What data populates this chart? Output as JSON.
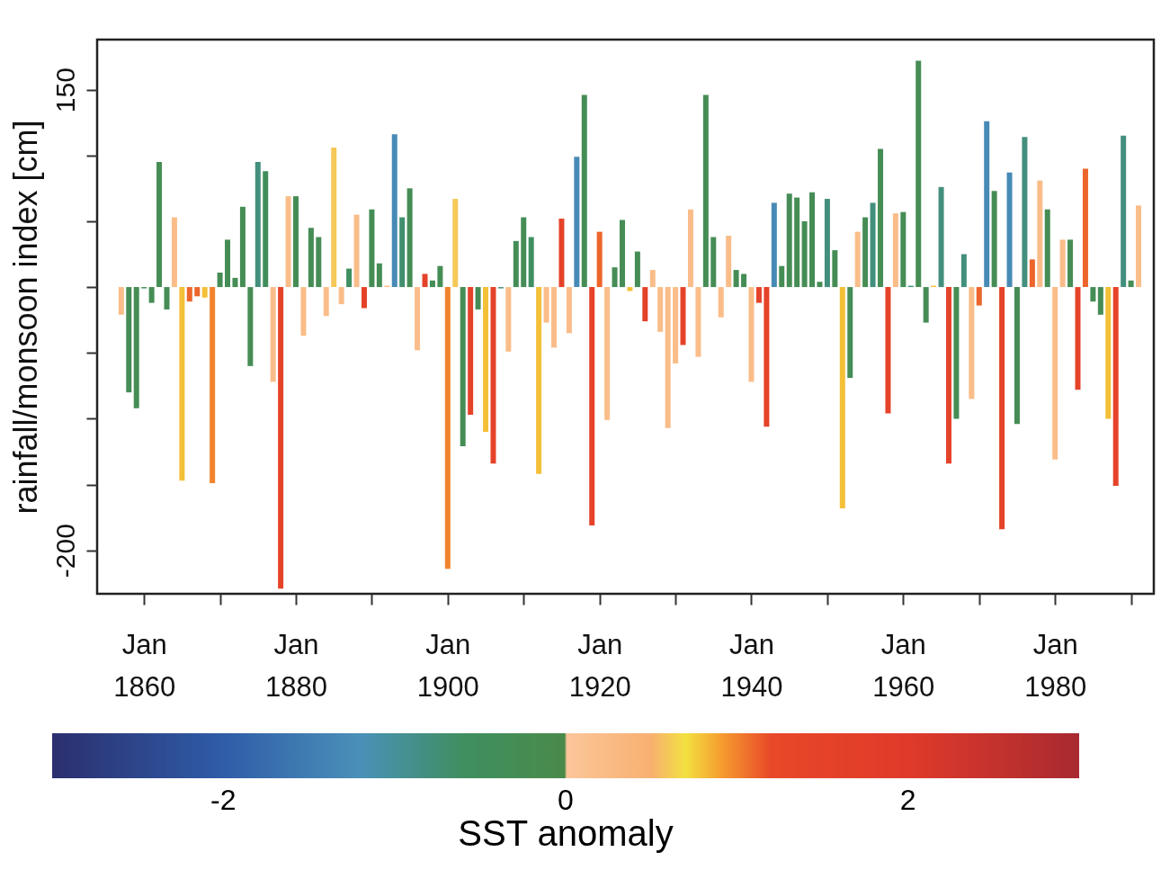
{
  "chart_data": {
    "type": "bar",
    "ylabel": "rainfall/monsoon index [cm]",
    "clabel": "SST anomaly",
    "clim": [
      -3,
      3
    ],
    "cticks": [
      -2,
      0,
      2
    ],
    "xlim": [
      "1854-06",
      "1992-06"
    ],
    "xticks": [
      {
        "value": "1860",
        "label": "Jan 1860"
      },
      {
        "value": "1870",
        "label": null
      },
      {
        "value": "1880",
        "label": "Jan 1880"
      },
      {
        "value": "1890",
        "label": null
      },
      {
        "value": "1900",
        "label": "Jan 1900"
      },
      {
        "value": "1910",
        "label": null
      },
      {
        "value": "1920",
        "label": "Jan 1920"
      },
      {
        "value": "1930",
        "label": null
      },
      {
        "value": "1940",
        "label": "Jan 1940"
      },
      {
        "value": "1950",
        "label": null
      },
      {
        "value": "1960",
        "label": "Jan 1960"
      },
      {
        "value": "1970",
        "label": null
      },
      {
        "value": "1980",
        "label": "Jan 1980"
      },
      {
        "value": "1990",
        "label": null
      }
    ],
    "ylim": [
      -233,
      188
    ],
    "yticks": [
      -200,
      {
        "value": -150,
        "label": null
      },
      {
        "value": -100,
        "label": null
      },
      {
        "value": -50,
        "label": null
      },
      {
        "value": 0,
        "label": null
      },
      {
        "value": 50,
        "label": null
      },
      {
        "value": 100,
        "label": null
      },
      150
    ],
    "x": [
      "1857",
      "1858",
      "1859",
      "1860",
      "1861",
      "1862",
      "1863",
      "1864",
      "1865",
      "1866",
      "1867",
      "1868",
      "1869",
      "1870",
      "1871",
      "1872",
      "1873",
      "1874",
      "1875",
      "1876",
      "1877",
      "1878",
      "1879",
      "1880",
      "1881",
      "1882",
      "1883",
      "1884",
      "1885",
      "1886",
      "1887",
      "1888",
      "1889",
      "1890",
      "1891",
      "1892",
      "1893",
      "1894",
      "1895",
      "1896",
      "1897",
      "1898",
      "1899",
      "1900",
      "1901",
      "1902",
      "1903",
      "1904",
      "1905",
      "1906",
      "1907",
      "1908",
      "1909",
      "1910",
      "1911",
      "1912",
      "1913",
      "1914",
      "1915",
      "1916",
      "1917",
      "1918",
      "1919",
      "1920",
      "1921",
      "1922",
      "1923",
      "1924",
      "1925",
      "1926",
      "1927",
      "1928",
      "1929",
      "1930",
      "1931",
      "1932",
      "1933",
      "1934",
      "1935",
      "1936",
      "1937",
      "1938",
      "1939",
      "1940",
      "1941",
      "1942",
      "1943",
      "1944",
      "1945",
      "1946",
      "1947",
      "1948",
      "1949",
      "1950",
      "1951",
      "1952",
      "1953",
      "1954",
      "1955",
      "1956",
      "1957",
      "1958",
      "1959",
      "1960",
      "1961",
      "1962",
      "1963",
      "1964",
      "1965",
      "1966",
      "1967",
      "1968",
      "1969",
      "1970",
      "1971",
      "1972",
      "1973",
      "1974",
      "1975",
      "1976",
      "1977",
      "1978",
      "1979",
      "1980",
      "1981",
      "1982",
      "1983",
      "1984",
      "1985",
      "1986",
      "1987",
      "1988",
      "1989",
      "1990",
      "1991"
    ],
    "values": [
      -21,
      -80,
      -92,
      -1,
      -12,
      95,
      -17,
      53,
      -147,
      -11,
      -7,
      -8,
      -149,
      11,
      36,
      7,
      61,
      -60,
      95,
      88,
      -72,
      -229,
      69,
      69,
      -37,
      45,
      38,
      -22,
      106,
      -13,
      14,
      55,
      -16,
      59,
      18,
      1,
      116,
      53,
      75,
      -48,
      10,
      5,
      16,
      -214,
      67,
      -121,
      -97,
      -17,
      -110,
      -134,
      -1,
      -49,
      35,
      53,
      38,
      -142,
      -27,
      -46,
      52,
      -35,
      99,
      146,
      -181,
      42,
      -101,
      15,
      51,
      -3,
      27,
      -26,
      13,
      -34,
      -107,
      -58,
      -44,
      59,
      -53,
      146,
      38,
      -23,
      39,
      13,
      10,
      -72,
      -12,
      -106,
      64,
      16,
      71,
      68,
      50,
      72,
      4,
      67,
      28,
      -168,
      -69,
      42,
      53,
      64,
      105,
      -96,
      56,
      57,
      1,
      172,
      -27,
      1,
      76,
      -134,
      -100,
      25,
      -85,
      -14,
      126,
      73,
      -184,
      87,
      -104,
      114,
      21,
      81,
      59,
      -131,
      36,
      36,
      -78,
      90,
      -11,
      -21,
      -100,
      -151,
      115,
      5,
      62
    ],
    "cvalues": [
      0.2,
      -0.3,
      -0.3,
      -0.3,
      -0.3,
      -0.3,
      -0.3,
      0.2,
      0.8,
      1.1,
      1.1,
      0.8,
      1.0,
      -0.3,
      -0.3,
      -0.3,
      -0.3,
      -0.3,
      -0.8,
      -0.5,
      0.2,
      1.5,
      0.2,
      -0.3,
      0.2,
      -0.3,
      -0.3,
      0.2,
      0.6,
      0.2,
      -0.6,
      0.2,
      1.5,
      -0.3,
      -0.3,
      0.2,
      -1.3,
      -0.7,
      -0.3,
      0.2,
      1.5,
      -0.3,
      -0.3,
      1.0,
      0.6,
      -0.3,
      1.5,
      -0.3,
      0.8,
      1.5,
      -0.8,
      0.2,
      -0.3,
      -0.3,
      -0.6,
      0.8,
      0.2,
      0.2,
      1.5,
      0.2,
      -1.3,
      -0.3,
      1.5,
      1.1,
      0.2,
      -0.3,
      -0.3,
      0.8,
      -0.3,
      1.5,
      0.2,
      0.2,
      0.2,
      0.2,
      1.5,
      0.2,
      0.2,
      -0.3,
      -0.3,
      0.2,
      0.2,
      -0.3,
      -0.3,
      0.2,
      1.5,
      1.5,
      -1.3,
      -0.3,
      -0.3,
      -0.3,
      -0.3,
      -0.3,
      -0.3,
      -0.8,
      -0.3,
      0.8,
      -0.3,
      0.2,
      -0.3,
      -0.8,
      -0.3,
      1.5,
      0.2,
      -0.3,
      -0.8,
      -0.3,
      -0.3,
      0.8,
      -0.8,
      1.5,
      -0.3,
      -0.8,
      0.2,
      1.1,
      -1.3,
      -0.3,
      1.5,
      -1.3,
      -0.3,
      -0.8,
      1.1,
      0.2,
      -0.3,
      0.2,
      0.2,
      -0.3,
      1.5,
      1.1,
      -0.3,
      -0.3,
      0.8,
      1.5,
      -0.8,
      -0.3,
      0.2
    ]
  }
}
